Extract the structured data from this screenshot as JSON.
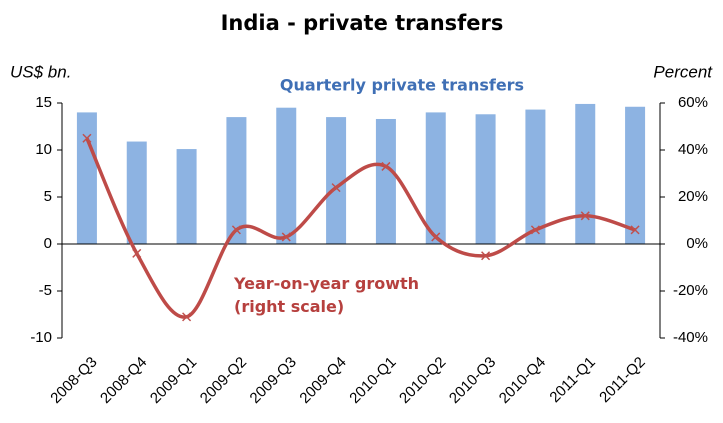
{
  "chart_data": {
    "type": "bar_line",
    "title": "India - private transfers",
    "y_label": "US$ bn.",
    "y2_label": "Percent",
    "categories": [
      "2008-Q3",
      "2008-Q4",
      "2009-Q1",
      "2009-Q2",
      "2009-Q3",
      "2009-Q4",
      "2010-Q1",
      "2010-Q2",
      "2010-Q3",
      "2010-Q4",
      "2011-Q1",
      "2011-Q2"
    ],
    "series": [
      {
        "name": "Quarterly private transfers",
        "type": "bar",
        "color": "#8db3e2",
        "values": [
          14,
          10.9,
          10.1,
          13.5,
          14.5,
          13.5,
          13.3,
          14,
          13.8,
          14.3,
          14.9,
          14.6
        ]
      },
      {
        "name": "Year-on-year growth (right scale)",
        "type": "line",
        "axis": "y2",
        "color": "#be4b48",
        "values": [
          45,
          -4,
          -31,
          6,
          3,
          24,
          33,
          3,
          -5,
          6,
          12,
          6
        ]
      }
    ],
    "ylim": [
      -10,
      15
    ],
    "yticks": [
      -10,
      -5,
      0,
      5,
      10,
      15
    ],
    "y2lim": [
      -40,
      60
    ],
    "y2ticks": [
      {
        "value": -40,
        "label": "-40%"
      },
      {
        "value": -20,
        "label": "-20%"
      },
      {
        "value": 0,
        "label": "0%"
      },
      {
        "value": 20,
        "label": "20%"
      },
      {
        "value": 40,
        "label": "40%"
      },
      {
        "value": 60,
        "label": "60%"
      }
    ]
  }
}
